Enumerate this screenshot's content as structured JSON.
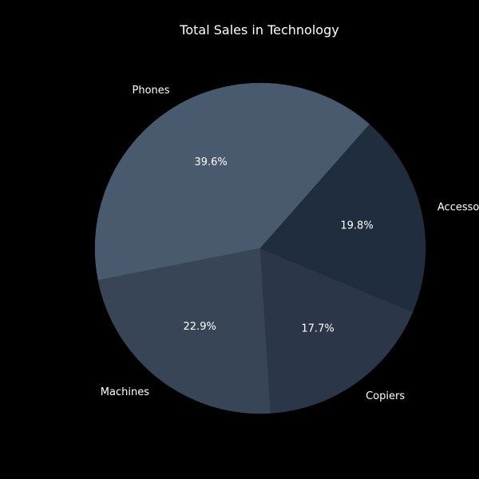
{
  "chart_data": {
    "type": "pie",
    "title": "Total Sales in Technology",
    "categories": [
      "Phones",
      "Machines",
      "Copiers",
      "Accessories"
    ],
    "values": [
      39.6,
      22.9,
      17.7,
      19.8
    ],
    "value_labels": [
      "39.6%",
      "22.9%",
      "17.7%",
      "19.8%"
    ],
    "colors": [
      "#4a5a6e",
      "#374557",
      "#2b3749",
      "#1f2d3e"
    ],
    "background": "#000000",
    "text_color": "#ffffff",
    "legend": "none"
  }
}
